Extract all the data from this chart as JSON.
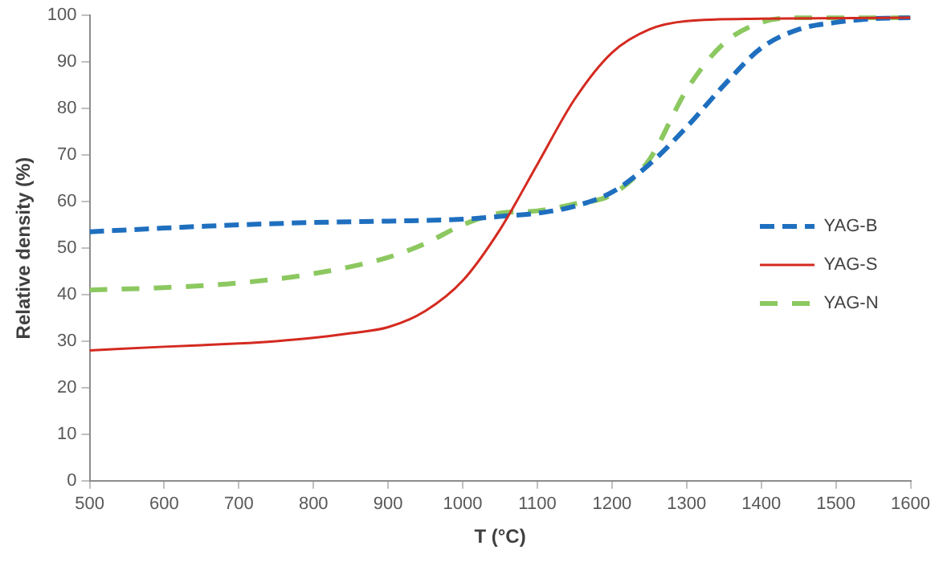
{
  "chart_data": {
    "type": "line",
    "xlabel": "T (°C)",
    "ylabel": "Relative density (%)",
    "xlim": [
      500,
      1600
    ],
    "xticks": [
      500,
      600,
      700,
      800,
      900,
      1000,
      1100,
      1200,
      1300,
      1400,
      1500,
      1600
    ],
    "ylim": [
      0,
      100
    ],
    "yticks": [
      0,
      10,
      20,
      30,
      40,
      50,
      60,
      70,
      80,
      90,
      100
    ],
    "grid": false,
    "legend": "right",
    "marker": "none",
    "series": [
      {
        "name": "YAG-B",
        "color": "#1f6fbf",
        "line_style": "dashed",
        "x": [
          500,
          600,
          700,
          800,
          900,
          1000,
          1050,
          1100,
          1150,
          1200,
          1250,
          1300,
          1350,
          1400,
          1450,
          1500,
          1550,
          1600
        ],
        "values": [
          53.5,
          54.3,
          55,
          55.5,
          55.8,
          56.2,
          56.8,
          57.5,
          59,
          62,
          68,
          76,
          85,
          93,
          97,
          98.5,
          99.3,
          99.5
        ]
      },
      {
        "name": "YAG-S",
        "color": "#d42a20",
        "line_style": "solid",
        "x": [
          500,
          600,
          700,
          750,
          800,
          850,
          900,
          950,
          1000,
          1050,
          1100,
          1150,
          1200,
          1250,
          1300,
          1400,
          1600
        ],
        "values": [
          28,
          28.8,
          29.5,
          30,
          30.7,
          31.7,
          33,
          36.5,
          43,
          54,
          68,
          82,
          92,
          97,
          98.8,
          99.3,
          99.5
        ]
      },
      {
        "name": "YAG-N",
        "color": "#8cc860",
        "line_style": "dashed",
        "x": [
          500,
          600,
          700,
          800,
          900,
          950,
          1000,
          1050,
          1100,
          1150,
          1200,
          1250,
          1300,
          1350,
          1400,
          1450,
          1600
        ],
        "values": [
          41,
          41.5,
          42.5,
          44.5,
          48,
          51,
          55,
          57.5,
          58,
          59.5,
          61.5,
          69,
          84,
          94,
          98.5,
          99.5,
          99.5
        ]
      }
    ]
  }
}
